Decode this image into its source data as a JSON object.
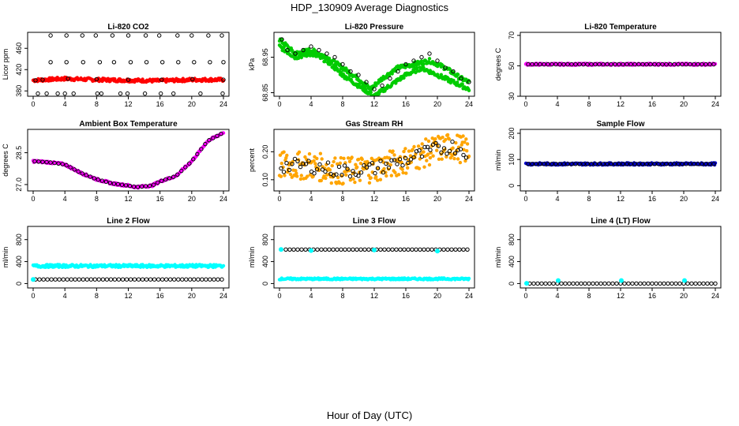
{
  "figure": {
    "title": "HDP_130909  Average Diagnostics",
    "xlabel": "Hour of Day (UTC)"
  },
  "chart_data": [
    {
      "type": "scatter",
      "title": "Li-820 CO2",
      "ylabel": "Licor ppm",
      "xlim": [
        0,
        24
      ],
      "ylim": [
        370,
        490
      ],
      "xticks": [
        0,
        4,
        8,
        12,
        16,
        20,
        24
      ],
      "yticks": [
        380,
        420,
        460
      ],
      "series": [
        {
          "color": "#ff0000",
          "fill": "band",
          "values": [
            [
              0,
              400
            ],
            [
              4,
              403
            ],
            [
              8,
              401
            ],
            [
              12,
              400
            ],
            [
              16,
              399
            ],
            [
              20,
              401
            ],
            [
              24,
              401
            ]
          ],
          "spread": 3
        },
        {
          "color": "#000000",
          "fill": "open",
          "points": [
            [
              0.3,
              400
            ],
            [
              1.2,
              401
            ],
            [
              2.2,
              484
            ],
            [
              2.2,
              434
            ],
            [
              4.2,
              484
            ],
            [
              4.2,
              434
            ],
            [
              4.4,
              403
            ],
            [
              6.2,
              484
            ],
            [
              6.3,
              434
            ],
            [
              7.9,
              484
            ],
            [
              8.4,
              434
            ],
            [
              8.0,
              402
            ],
            [
              10.0,
              484
            ],
            [
              10.2,
              434
            ],
            [
              12.0,
              484
            ],
            [
              12.3,
              434
            ],
            [
              12.0,
              401
            ],
            [
              14.2,
              484
            ],
            [
              14.3,
              434
            ],
            [
              15.9,
              484
            ],
            [
              16.3,
              434
            ],
            [
              16.2,
              401
            ],
            [
              18.2,
              484
            ],
            [
              18.3,
              434
            ],
            [
              20.0,
              484
            ],
            [
              20.3,
              434
            ],
            [
              20.1,
              402
            ],
            [
              22.1,
              484
            ],
            [
              22.3,
              434
            ],
            [
              23.8,
              484
            ],
            [
              24.0,
              434
            ],
            [
              24.0,
              401
            ],
            [
              0.6,
              375
            ],
            [
              1.7,
              375
            ],
            [
              3.1,
              375
            ],
            [
              4.0,
              375
            ],
            [
              5.1,
              375
            ],
            [
              8.1,
              375
            ],
            [
              8.6,
              375
            ],
            [
              11.0,
              375
            ],
            [
              11.9,
              375
            ],
            [
              14.1,
              375
            ],
            [
              16.1,
              375
            ],
            [
              17.7,
              375
            ],
            [
              21.1,
              375
            ],
            [
              23.9,
              375
            ]
          ]
        }
      ]
    },
    {
      "type": "scatter",
      "title": "Li-820 Pressure",
      "ylabel": "kPa",
      "xlim": [
        0,
        24
      ],
      "ylim": [
        68.84,
        69.02
      ],
      "xticks": [
        0,
        4,
        8,
        12,
        16,
        20,
        24
      ],
      "yticks": [
        68.85,
        68.95
      ],
      "series": [
        {
          "color": "#00cc00",
          "fill": "band",
          "values": [
            [
              0,
              69.0
            ],
            [
              2,
              68.96
            ],
            [
              4,
              68.97
            ],
            [
              6,
              68.95
            ],
            [
              8,
              68.92
            ],
            [
              10,
              68.89
            ],
            [
              11.5,
              68.86
            ],
            [
              13,
              68.89
            ],
            [
              15,
              68.92
            ],
            [
              17,
              68.93
            ],
            [
              19,
              68.94
            ],
            [
              21,
              68.92
            ],
            [
              23,
              68.89
            ],
            [
              24,
              68.88
            ]
          ],
          "spread": 0.006
        },
        {
          "color": "#00cc00",
          "fill": "band",
          "values": [
            [
              0,
              68.98
            ],
            [
              2,
              68.95
            ],
            [
              4,
              68.96
            ],
            [
              6,
              68.94
            ],
            [
              8,
              68.9
            ],
            [
              10,
              68.87
            ],
            [
              12,
              68.84
            ],
            [
              14,
              68.87
            ],
            [
              16,
              68.9
            ],
            [
              18,
              68.92
            ],
            [
              20,
              68.9
            ],
            [
              22,
              68.88
            ],
            [
              24,
              68.86
            ]
          ],
          "spread": 0.006
        },
        {
          "color": "#000000",
          "fill": "open",
          "points": [
            [
              0.3,
              69.0
            ],
            [
              1,
              68.97
            ],
            [
              2,
              68.96
            ],
            [
              3,
              68.97
            ],
            [
              4,
              68.98
            ],
            [
              5,
              68.97
            ],
            [
              6,
              68.96
            ],
            [
              7,
              68.95
            ],
            [
              8,
              68.93
            ],
            [
              9,
              68.91
            ],
            [
              10,
              68.9
            ],
            [
              11,
              68.88
            ],
            [
              12,
              68.86
            ],
            [
              13,
              68.87
            ],
            [
              14,
              68.89
            ],
            [
              15,
              68.91
            ],
            [
              16,
              68.93
            ],
            [
              17,
              68.94
            ],
            [
              18,
              68.95
            ],
            [
              19,
              68.96
            ],
            [
              20,
              68.94
            ],
            [
              21,
              68.92
            ],
            [
              22,
              68.91
            ],
            [
              23,
              68.89
            ],
            [
              24,
              68.88
            ]
          ]
        }
      ]
    },
    {
      "type": "scatter",
      "title": "Li-820 Temperature",
      "ylabel": "degrees C",
      "xlim": [
        0,
        24
      ],
      "ylim": [
        30,
        72
      ],
      "xticks": [
        0,
        4,
        8,
        12,
        16,
        20,
        24
      ],
      "yticks": [
        30,
        50,
        70
      ],
      "series": [
        {
          "color": "#ff00ff",
          "fill": "band",
          "values": [
            [
              0,
              51
            ],
            [
              24,
              51
            ]
          ],
          "spread": 0.6
        },
        {
          "color": "#000000",
          "fill": "open",
          "points": "line:0.3:24:51"
        }
      ]
    },
    {
      "type": "scatter",
      "title": "Ambient Box Temperature",
      "ylabel": "degrees C",
      "xlim": [
        0,
        24
      ],
      "ylim": [
        26.7,
        29.6
      ],
      "xticks": [
        0,
        4,
        8,
        12,
        16,
        20,
        24
      ],
      "yticks": [
        27.0,
        28.5
      ],
      "series": [
        {
          "color": "#ff00ff",
          "fill": "band",
          "values": [
            [
              0,
              28.1
            ],
            [
              2,
              28.05
            ],
            [
              4,
              27.95
            ],
            [
              6,
              27.55
            ],
            [
              8,
              27.25
            ],
            [
              10,
              27.05
            ],
            [
              12,
              26.95
            ],
            [
              13,
              26.88
            ],
            [
              15,
              26.95
            ],
            [
              16,
              27.15
            ],
            [
              18,
              27.4
            ],
            [
              20,
              28.1
            ],
            [
              22,
              29.05
            ],
            [
              24,
              29.45
            ]
          ],
          "spread": 0.05
        },
        {
          "color": "#000000",
          "fill": "open",
          "points": "curve"
        }
      ]
    },
    {
      "type": "scatter",
      "title": "Gas Stream RH",
      "ylabel": "percent",
      "xlim": [
        0,
        24
      ],
      "ylim": [
        0.06,
        0.28
      ],
      "xticks": [
        0,
        4,
        8,
        12,
        16,
        20,
        24
      ],
      "yticks": [
        0.1,
        0.2
      ],
      "series": [
        {
          "color": "#ffa500",
          "fill": "band",
          "values": [
            [
              0,
              0.15
            ],
            [
              4,
              0.15
            ],
            [
              8,
              0.13
            ],
            [
              12,
              0.14
            ],
            [
              16,
              0.17
            ],
            [
              18,
              0.19
            ],
            [
              20,
              0.21
            ],
            [
              22,
              0.22
            ],
            [
              24,
              0.2
            ]
          ],
          "spread": 0.05
        },
        {
          "color": "#000000",
          "fill": "open",
          "points": "curve"
        }
      ]
    },
    {
      "type": "scatter",
      "title": "Sample Flow",
      "ylabel": "ml/min",
      "xlim": [
        0,
        24
      ],
      "ylim": [
        -20,
        215
      ],
      "xticks": [
        0,
        4,
        8,
        12,
        16,
        20,
        24
      ],
      "yticks": [
        0,
        100,
        200
      ],
      "series": [
        {
          "color": "#0000cc",
          "fill": "band",
          "values": [
            [
              0,
              83
            ],
            [
              24,
              83
            ]
          ],
          "spread": 4
        },
        {
          "color": "#000000",
          "fill": "open",
          "points": "line:0.3:24:83"
        }
      ]
    },
    {
      "type": "scatter",
      "title": "Line 2 Flow",
      "ylabel": "ml/min",
      "xlim": [
        0,
        24
      ],
      "ylim": [
        -80,
        1040
      ],
      "xticks": [
        0,
        4,
        8,
        12,
        16,
        20,
        24
      ],
      "yticks": [
        0,
        400,
        800
      ],
      "series": [
        {
          "color": "#00ffff",
          "fill": "band",
          "values": [
            [
              0,
              320
            ],
            [
              24,
              320
            ]
          ],
          "spread": 25
        },
        {
          "color": "#000000",
          "fill": "open",
          "points": "line:0.3:24:75"
        },
        {
          "color": "#00ffff",
          "fill": "solid",
          "points": [
            [
              0,
              75
            ]
          ]
        }
      ]
    },
    {
      "type": "scatter",
      "title": "Line 3 Flow",
      "ylabel": "ml/min",
      "xlim": [
        0,
        24
      ],
      "ylim": [
        -80,
        1040
      ],
      "xticks": [
        0,
        4,
        8,
        12,
        16,
        20,
        24
      ],
      "yticks": [
        0,
        400,
        800
      ],
      "series": [
        {
          "color": "#00ffff",
          "fill": "band",
          "values": [
            [
              0,
              85
            ],
            [
              24,
              85
            ]
          ],
          "spread": 15
        },
        {
          "color": "#000000",
          "fill": "open",
          "points": "line:0.8:24:620"
        },
        {
          "color": "#00ffff",
          "fill": "solid",
          "points": [
            [
              0.2,
              620
            ],
            [
              4,
              600
            ],
            [
              12,
              610
            ],
            [
              20,
              590
            ]
          ]
        }
      ]
    },
    {
      "type": "scatter",
      "title": "Line 4 (LT) Flow",
      "ylabel": "ml/min",
      "xlim": [
        0,
        24
      ],
      "ylim": [
        -80,
        1040
      ],
      "xticks": [
        0,
        4,
        8,
        12,
        16,
        20,
        24
      ],
      "yticks": [
        0,
        400,
        800
      ],
      "series": [
        {
          "color": "#000000",
          "fill": "open",
          "points": "line:0.5:24:0"
        },
        {
          "color": "#00ffff",
          "fill": "solid",
          "points": [
            [
              0.1,
              5
            ],
            [
              4.1,
              55
            ],
            [
              12.1,
              55
            ],
            [
              20.1,
              55
            ]
          ]
        }
      ]
    }
  ]
}
